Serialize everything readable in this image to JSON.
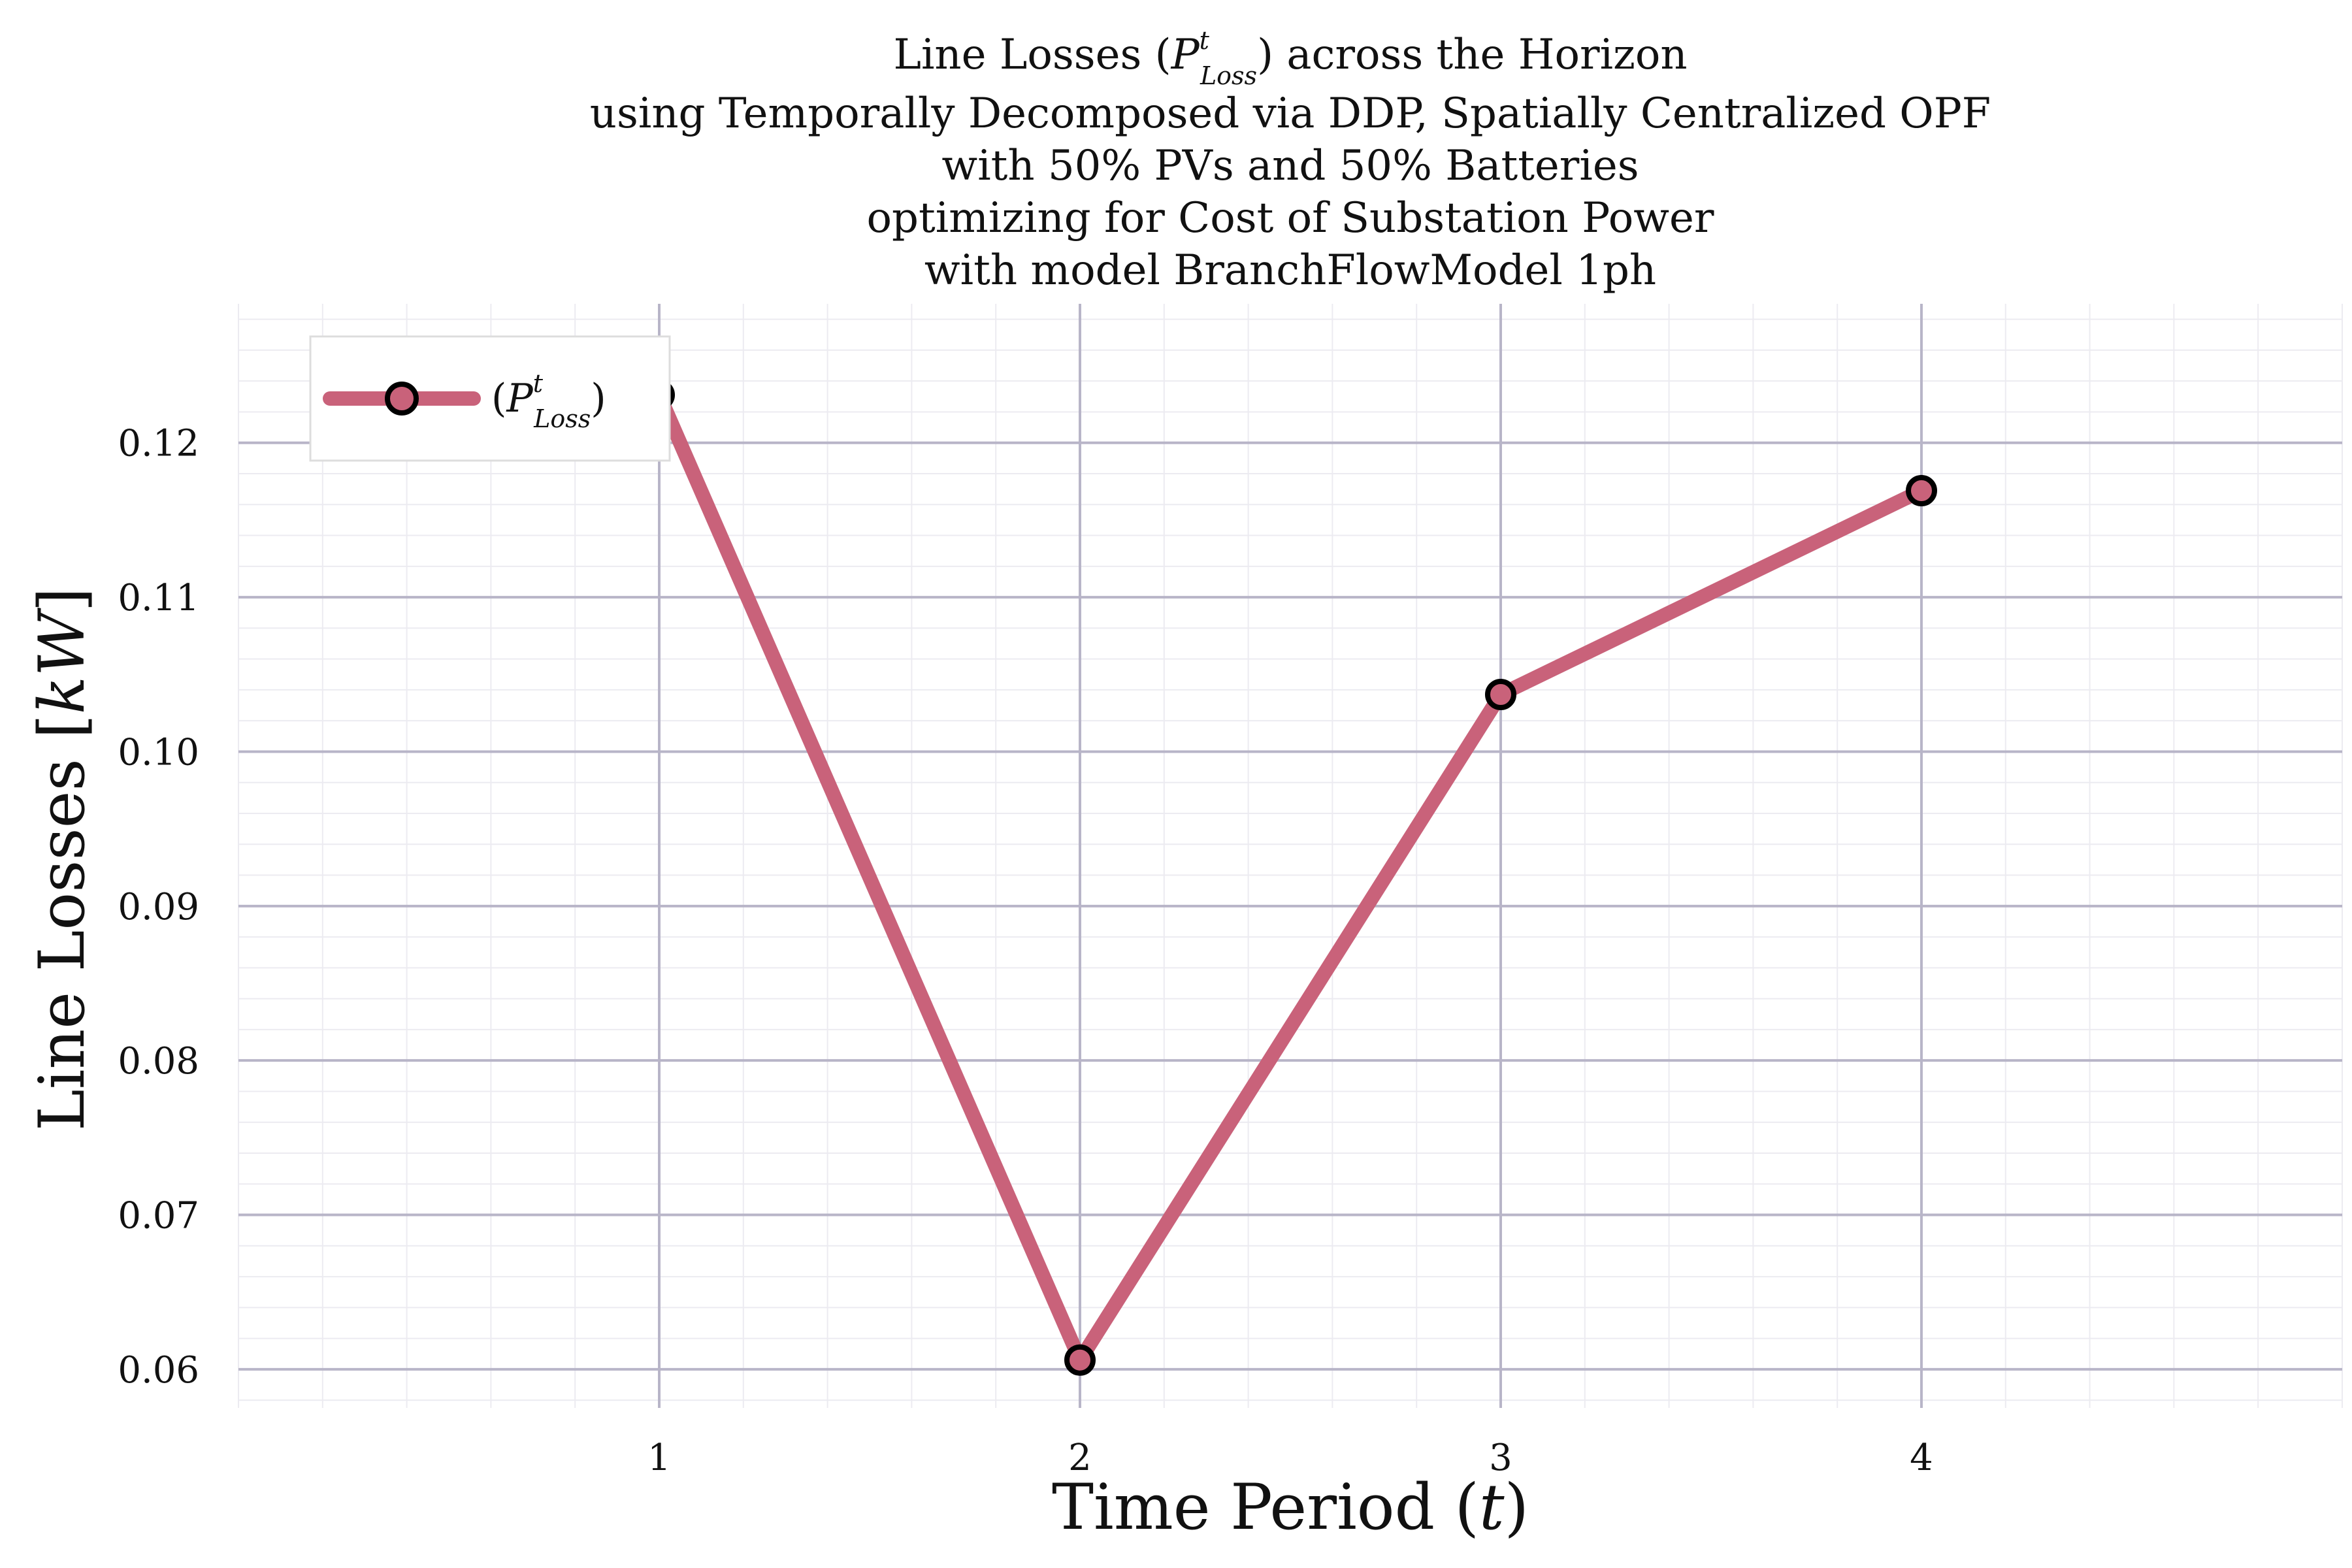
{
  "chart_data": {
    "type": "line",
    "title_lines": [
      "Line Losses (P^t_Loss) across the Horizon",
      "using Temporally Decomposed via DDP, Spatially Centralized OPF",
      "with 50% PVs and 50% Batteries",
      "optimizing for Cost of Substation Power",
      "with model BranchFlowModel 1ph"
    ],
    "xlabel": "Time Period (t)",
    "ylabel": "Line Losses [kW]",
    "x": [
      1,
      2,
      3,
      4
    ],
    "x_ticks": [
      "1",
      "2",
      "3",
      "4"
    ],
    "xlim": [
      0,
      5
    ],
    "y_ticks": [
      "0.06",
      "0.07",
      "0.08",
      "0.09",
      "0.10",
      "0.11",
      "0.12"
    ],
    "ylim": [
      0.0575,
      0.129
    ],
    "series": [
      {
        "name": "(P^t_Loss)",
        "values": [
          0.1231,
          0.0606,
          0.1037,
          0.1169
        ]
      }
    ],
    "grid": true,
    "legend_position": "top-left",
    "colors": {
      "line": "#c9627a",
      "marker_edge": "#000000",
      "grid_major": "#b8b5c8",
      "grid_minor": "#ecebf1"
    }
  }
}
